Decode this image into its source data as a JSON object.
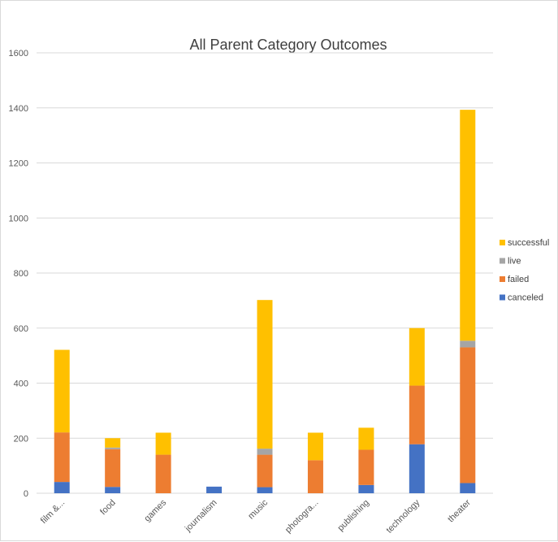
{
  "chart_data": {
    "type": "bar",
    "stacked": true,
    "title": "All Parent Category Outcomes",
    "xlabel": "",
    "ylabel": "",
    "ylim": [
      0,
      1600
    ],
    "yticks": [
      0,
      200,
      400,
      600,
      800,
      1000,
      1200,
      1400,
      1600
    ],
    "grid": true,
    "legend_position": "right",
    "categories": [
      "film &...",
      "food",
      "games",
      "journalism",
      "music",
      "photogra...",
      "publishing",
      "technology",
      "theater"
    ],
    "series": [
      {
        "name": "canceled",
        "color": "#4472c4",
        "values": [
          41,
          23,
          0,
          24,
          22,
          0,
          30,
          178,
          37
        ]
      },
      {
        "name": "failed",
        "color": "#ed7d31",
        "values": [
          180,
          137,
          140,
          0,
          118,
          120,
          128,
          213,
          493
        ]
      },
      {
        "name": "live",
        "color": "#a5a5a5",
        "values": [
          0,
          6,
          0,
          0,
          22,
          0,
          0,
          0,
          24
        ]
      },
      {
        "name": "successful",
        "color": "#ffc000",
        "values": [
          300,
          34,
          80,
          0,
          540,
          100,
          80,
          209,
          839
        ]
      }
    ]
  }
}
